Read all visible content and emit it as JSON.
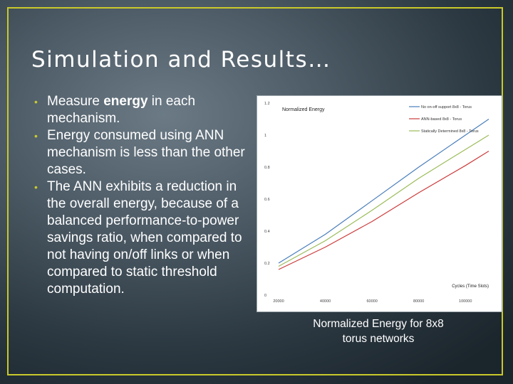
{
  "slide": {
    "title": "Simulation and Results…",
    "bullets": [
      {
        "pre": "Measure ",
        "bold": "energy",
        "post": " in each mechanism."
      },
      {
        "pre": "Energy consumed using ANN mechanism is less than the other cases.",
        "bold": "",
        "post": ""
      },
      {
        "pre": "The ANN exhibits a reduction in the overall energy, because of a balanced performance-to-power savings ratio, when compared to not having on/off links or when compared to static threshold computation.",
        "bold": "",
        "post": ""
      }
    ],
    "bullet_glyph": "•",
    "caption_line1": "Normalized Energy for 8x8",
    "caption_line2": "torus networks",
    "accent_color": "#c9c92a"
  },
  "chart_data": {
    "type": "line",
    "title": "Normalized Energy",
    "xlabel": "Cycles (Time Slots)",
    "ylabel": "",
    "x": [
      20000,
      40000,
      60000,
      80000,
      100000
    ],
    "xtick_labels": [
      "20000",
      "40000",
      "60000",
      "80000",
      "100000"
    ],
    "xlim": [
      20000,
      110000
    ],
    "ylim": [
      0,
      1.2
    ],
    "yticks": [
      0,
      0.2,
      0.4,
      0.6,
      0.8,
      1,
      1.2
    ],
    "ytick_labels": [
      "0",
      "0.2",
      "0.4",
      "0.6",
      "0.8",
      "1",
      "1.2"
    ],
    "grid": false,
    "legend_position": "top-right",
    "series": [
      {
        "name": "No on-off support 8x8 - Torus",
        "color": "#4a7ebb",
        "x": [
          20000,
          40000,
          60000,
          80000,
          100000,
          110000
        ],
        "values": [
          0.2,
          0.38,
          0.59,
          0.8,
          1.0,
          1.1
        ]
      },
      {
        "name": "ANN-based 8x8 - Torus",
        "color": "#cc3b3b",
        "x": [
          20000,
          40000,
          60000,
          80000,
          100000,
          110000
        ],
        "values": [
          0.16,
          0.3,
          0.46,
          0.64,
          0.81,
          0.9
        ]
      },
      {
        "name": "Statically Determined 8x8 - Torus",
        "color": "#9bbb59",
        "x": [
          20000,
          40000,
          60000,
          80000,
          100000,
          110000
        ],
        "values": [
          0.18,
          0.34,
          0.53,
          0.73,
          0.91,
          1.0
        ]
      }
    ]
  }
}
